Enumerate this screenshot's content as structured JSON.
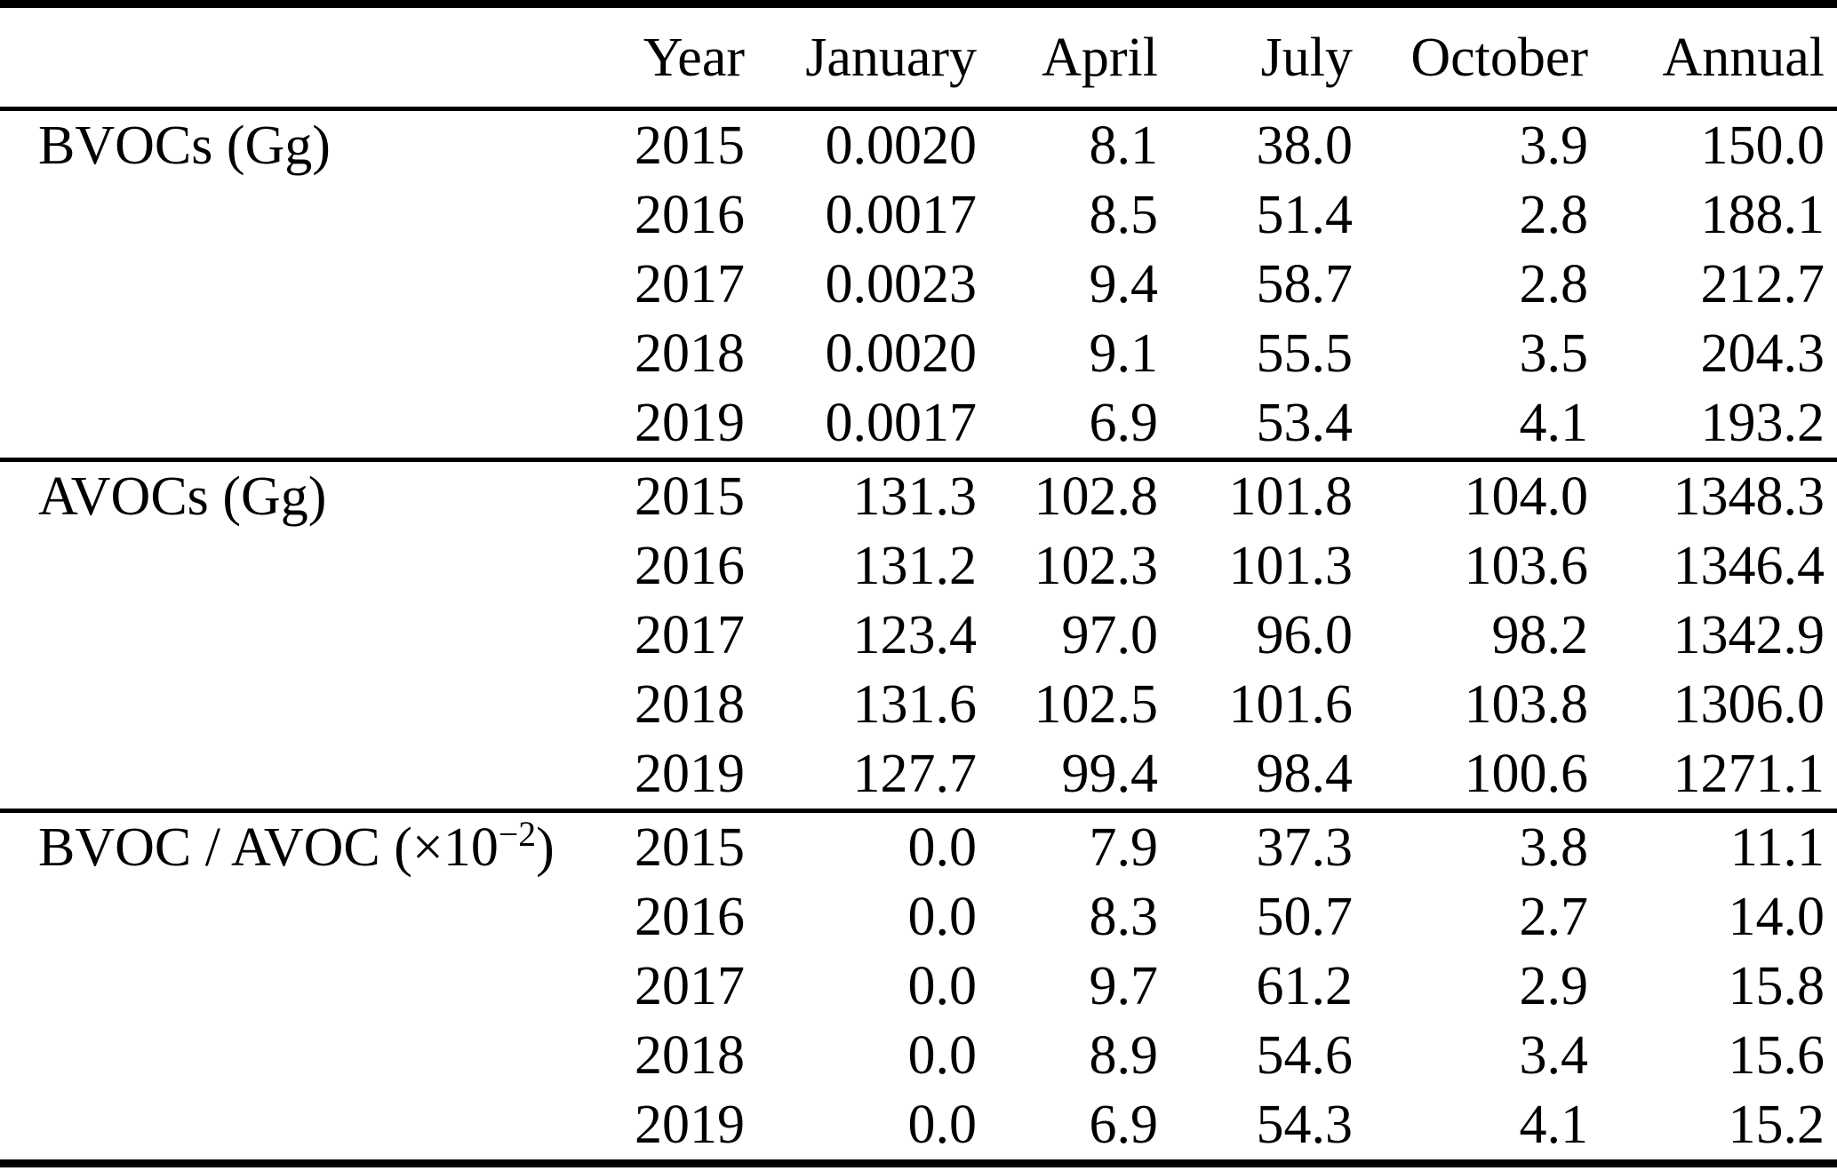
{
  "table": {
    "columns": [
      "",
      "Year",
      "January",
      "April",
      "July",
      "October",
      "Annual"
    ],
    "sections": [
      {
        "label_runs": [
          {
            "text": "BVOCs (Gg)",
            "sup": false
          }
        ],
        "rows": [
          {
            "year": "2015",
            "values": [
              "0.0020",
              "8.1",
              "38.0",
              "3.9",
              "150.0"
            ]
          },
          {
            "year": "2016",
            "values": [
              "0.0017",
              "8.5",
              "51.4",
              "2.8",
              "188.1"
            ]
          },
          {
            "year": "2017",
            "values": [
              "0.0023",
              "9.4",
              "58.7",
              "2.8",
              "212.7"
            ]
          },
          {
            "year": "2018",
            "values": [
              "0.0020",
              "9.1",
              "55.5",
              "3.5",
              "204.3"
            ]
          },
          {
            "year": "2019",
            "values": [
              "0.0017",
              "6.9",
              "53.4",
              "4.1",
              "193.2"
            ]
          }
        ]
      },
      {
        "label_runs": [
          {
            "text": "AVOCs (Gg)",
            "sup": false
          }
        ],
        "rows": [
          {
            "year": "2015",
            "values": [
              "131.3",
              "102.8",
              "101.8",
              "104.0",
              "1348.3"
            ]
          },
          {
            "year": "2016",
            "values": [
              "131.2",
              "102.3",
              "101.3",
              "103.6",
              "1346.4"
            ]
          },
          {
            "year": "2017",
            "values": [
              "123.4",
              "97.0",
              "96.0",
              "98.2",
              "1342.9"
            ]
          },
          {
            "year": "2018",
            "values": [
              "131.6",
              "102.5",
              "101.6",
              "103.8",
              "1306.0"
            ]
          },
          {
            "year": "2019",
            "values": [
              "127.7",
              "99.4",
              "98.4",
              "100.6",
              "1271.1"
            ]
          }
        ]
      },
      {
        "label_runs": [
          {
            "text": "BVOC / AVOC (×10",
            "sup": false
          },
          {
            "text": "−2",
            "sup": true
          },
          {
            "text": ")",
            "sup": false
          }
        ],
        "rows": [
          {
            "year": "2015",
            "values": [
              "0.0",
              "7.9",
              "37.3",
              "3.8",
              "11.1"
            ]
          },
          {
            "year": "2016",
            "values": [
              "0.0",
              "8.3",
              "50.7",
              "2.7",
              "14.0"
            ]
          },
          {
            "year": "2017",
            "values": [
              "0.0",
              "9.7",
              "61.2",
              "2.9",
              "15.8"
            ]
          },
          {
            "year": "2018",
            "values": [
              "0.0",
              "8.9",
              "54.6",
              "3.4",
              "15.6"
            ]
          },
          {
            "year": "2019",
            "values": [
              "0.0",
              "6.9",
              "54.3",
              "4.1",
              "15.2"
            ]
          }
        ]
      }
    ]
  }
}
